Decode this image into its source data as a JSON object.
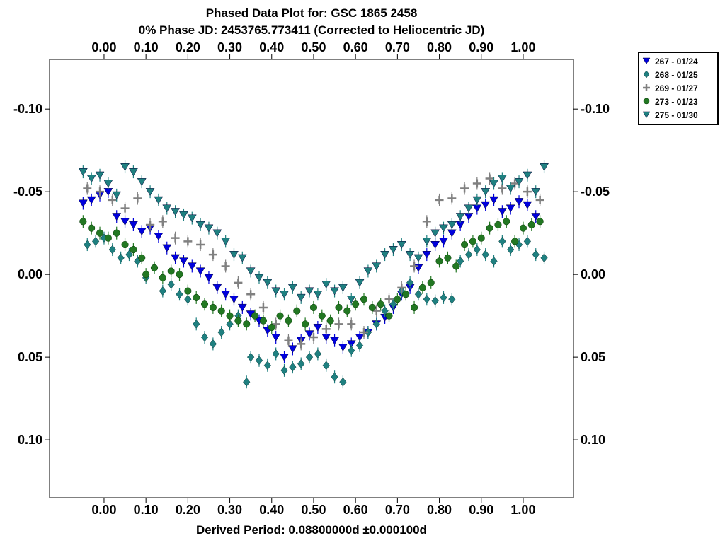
{
  "chart_data": {
    "type": "scatter",
    "title": "Phased Data Plot for: GSC 1865 2458",
    "subtitle": "0% Phase JD:  2453765.773411   (Corrected to Heliocentric JD)",
    "xlabel": "Derived Period: 0.08800000d   ±0.000100d",
    "ylabel": "",
    "xlim": [
      -0.13,
      1.12
    ],
    "ylim": [
      0.135,
      -0.13
    ],
    "y_inverted": true,
    "x_ticks": [
      "0.00",
      "0.10",
      "0.20",
      "0.30",
      "0.40",
      "0.50",
      "0.60",
      "0.70",
      "0.80",
      "0.90",
      "1.00"
    ],
    "y_ticks": [
      "-0.10",
      "-0.05",
      "0.00",
      "0.05",
      "0.10"
    ],
    "grid": false,
    "legend_position": "top-right outside",
    "series": [
      {
        "name": "267 - 01/24",
        "marker": "triangle-down",
        "color": "#0000dd",
        "x": [
          -0.05,
          -0.03,
          -0.01,
          0.01,
          0.03,
          0.05,
          0.07,
          0.09,
          0.11,
          0.13,
          0.15,
          0.17,
          0.19,
          0.21,
          0.23,
          0.25,
          0.27,
          0.29,
          0.31,
          0.33,
          0.35,
          0.37,
          0.39,
          0.41,
          0.43,
          0.45,
          0.47,
          0.49,
          0.51,
          0.53,
          0.55,
          0.57,
          0.59,
          0.61,
          0.63,
          0.65,
          0.67,
          0.69,
          0.71,
          0.73,
          0.75,
          0.77,
          0.79,
          0.81,
          0.83,
          0.85,
          0.87,
          0.89,
          0.91,
          0.93,
          0.95,
          0.97,
          0.99,
          1.01,
          1.03
        ],
        "y": [
          -0.043,
          -0.045,
          -0.048,
          -0.05,
          -0.035,
          -0.032,
          -0.03,
          -0.026,
          -0.028,
          -0.023,
          -0.016,
          -0.01,
          -0.008,
          -0.005,
          -0.002,
          0.002,
          0.008,
          0.012,
          0.015,
          0.02,
          0.024,
          0.028,
          0.034,
          0.038,
          0.05,
          0.045,
          0.04,
          0.036,
          0.032,
          0.038,
          0.04,
          0.044,
          0.042,
          0.038,
          0.035,
          0.03,
          0.026,
          0.02,
          0.012,
          0.008,
          -0.004,
          -0.012,
          -0.018,
          -0.02,
          -0.025,
          -0.03,
          -0.035,
          -0.04,
          -0.042,
          -0.045,
          -0.038,
          -0.04,
          -0.044,
          -0.042,
          -0.035
        ]
      },
      {
        "name": "268 - 01/25",
        "marker": "diamond",
        "color": "#1f8080",
        "x": [
          -0.04,
          -0.02,
          0.0,
          0.02,
          0.04,
          0.06,
          0.08,
          0.1,
          0.12,
          0.14,
          0.16,
          0.18,
          0.2,
          0.22,
          0.24,
          0.26,
          0.28,
          0.3,
          0.32,
          0.34,
          0.35,
          0.37,
          0.39,
          0.41,
          0.43,
          0.45,
          0.47,
          0.49,
          0.51,
          0.53,
          0.55,
          0.57,
          0.59,
          0.61,
          0.63,
          0.65,
          0.67,
          0.69,
          0.71,
          0.73,
          0.75,
          0.77,
          0.79,
          0.81,
          0.83,
          0.85,
          0.87,
          0.89,
          0.91,
          0.93,
          0.95,
          0.97,
          0.99,
          1.01,
          1.03,
          1.05
        ],
        "y": [
          -0.018,
          -0.02,
          -0.022,
          -0.015,
          -0.01,
          -0.012,
          -0.008,
          0.002,
          -0.004,
          0.01,
          0.006,
          0.012,
          0.015,
          0.03,
          0.038,
          0.042,
          0.035,
          0.03,
          0.025,
          0.065,
          0.05,
          0.052,
          0.055,
          0.048,
          0.058,
          0.056,
          0.054,
          0.05,
          0.048,
          0.055,
          0.062,
          0.065,
          0.046,
          0.043,
          0.035,
          0.03,
          0.022,
          0.018,
          0.01,
          0.005,
          0.012,
          0.015,
          0.016,
          0.014,
          0.015,
          -0.008,
          -0.012,
          -0.015,
          -0.012,
          -0.008,
          -0.02,
          -0.015,
          -0.018,
          -0.02,
          -0.012,
          -0.01
        ]
      },
      {
        "name": "269 - 01/27",
        "marker": "plus",
        "color": "#808080",
        "x": [
          -0.04,
          -0.01,
          0.02,
          0.05,
          0.08,
          0.11,
          0.14,
          0.17,
          0.2,
          0.23,
          0.26,
          0.29,
          0.32,
          0.35,
          0.38,
          0.41,
          0.44,
          0.47,
          0.5,
          0.53,
          0.56,
          0.59,
          0.62,
          0.65,
          0.68,
          0.71,
          0.74,
          0.77,
          0.8,
          0.83,
          0.86,
          0.89,
          0.92,
          0.95,
          0.98,
          1.01,
          1.04
        ],
        "y": [
          -0.052,
          -0.05,
          -0.045,
          -0.04,
          -0.046,
          -0.03,
          -0.032,
          -0.022,
          -0.02,
          -0.018,
          -0.012,
          -0.005,
          0.005,
          0.012,
          0.02,
          0.03,
          0.04,
          0.042,
          0.038,
          0.033,
          0.03,
          0.03,
          0.035,
          0.022,
          0.015,
          0.008,
          -0.005,
          -0.032,
          -0.045,
          -0.046,
          -0.052,
          -0.055,
          -0.058,
          -0.052,
          -0.055,
          -0.05,
          -0.045
        ]
      },
      {
        "name": "273 - 01/23",
        "marker": "circle",
        "color": "#227722",
        "x": [
          -0.05,
          -0.03,
          -0.01,
          0.01,
          0.03,
          0.05,
          0.07,
          0.09,
          0.1,
          0.12,
          0.14,
          0.16,
          0.18,
          0.2,
          0.22,
          0.24,
          0.26,
          0.28,
          0.3,
          0.32,
          0.34,
          0.36,
          0.38,
          0.4,
          0.42,
          0.44,
          0.46,
          0.48,
          0.5,
          0.52,
          0.54,
          0.56,
          0.58,
          0.6,
          0.62,
          0.64,
          0.66,
          0.68,
          0.7,
          0.72,
          0.74,
          0.76,
          0.78,
          0.8,
          0.82,
          0.84,
          0.86,
          0.88,
          0.9,
          0.92,
          0.94,
          0.96,
          0.98,
          1.0,
          1.02,
          1.04
        ],
        "y": [
          -0.032,
          -0.028,
          -0.025,
          -0.022,
          -0.025,
          -0.018,
          -0.015,
          -0.01,
          0.0,
          -0.004,
          0.002,
          -0.002,
          0.0,
          0.01,
          0.014,
          0.018,
          0.02,
          0.022,
          0.025,
          0.028,
          0.03,
          0.025,
          0.028,
          0.032,
          0.025,
          0.028,
          0.022,
          0.03,
          0.02,
          0.025,
          0.028,
          0.02,
          0.022,
          0.018,
          0.015,
          0.02,
          0.018,
          0.025,
          0.015,
          0.012,
          0.02,
          0.008,
          0.005,
          -0.008,
          -0.01,
          -0.005,
          -0.018,
          -0.02,
          -0.022,
          -0.028,
          -0.03,
          -0.032,
          -0.02,
          -0.028,
          -0.03,
          -0.032
        ]
      },
      {
        "name": "275 - 01/30",
        "marker": "triangle-down",
        "color": "#1f8080",
        "x": [
          -0.05,
          -0.03,
          -0.01,
          0.01,
          0.03,
          0.05,
          0.07,
          0.09,
          0.11,
          0.13,
          0.15,
          0.17,
          0.19,
          0.21,
          0.23,
          0.25,
          0.27,
          0.29,
          0.31,
          0.33,
          0.35,
          0.37,
          0.39,
          0.41,
          0.43,
          0.45,
          0.47,
          0.49,
          0.51,
          0.53,
          0.55,
          0.57,
          0.59,
          0.61,
          0.63,
          0.65,
          0.67,
          0.69,
          0.71,
          0.73,
          0.75,
          0.77,
          0.79,
          0.81,
          0.83,
          0.85,
          0.87,
          0.89,
          0.91,
          0.93,
          0.95,
          0.97,
          0.99,
          1.01,
          1.03,
          1.05
        ],
        "y": [
          -0.062,
          -0.058,
          -0.06,
          -0.055,
          -0.048,
          -0.065,
          -0.062,
          -0.056,
          -0.05,
          -0.045,
          -0.04,
          -0.038,
          -0.036,
          -0.034,
          -0.03,
          -0.028,
          -0.025,
          -0.02,
          -0.012,
          -0.01,
          -0.002,
          0.002,
          0.005,
          0.01,
          0.012,
          0.008,
          0.014,
          0.01,
          0.012,
          0.006,
          0.01,
          0.008,
          0.015,
          0.005,
          -0.002,
          -0.005,
          -0.012,
          -0.015,
          -0.018,
          -0.012,
          -0.01,
          -0.02,
          -0.025,
          -0.028,
          -0.03,
          -0.035,
          -0.04,
          -0.045,
          -0.05,
          -0.055,
          -0.058,
          -0.052,
          -0.056,
          -0.06,
          -0.05,
          -0.065
        ]
      }
    ]
  }
}
